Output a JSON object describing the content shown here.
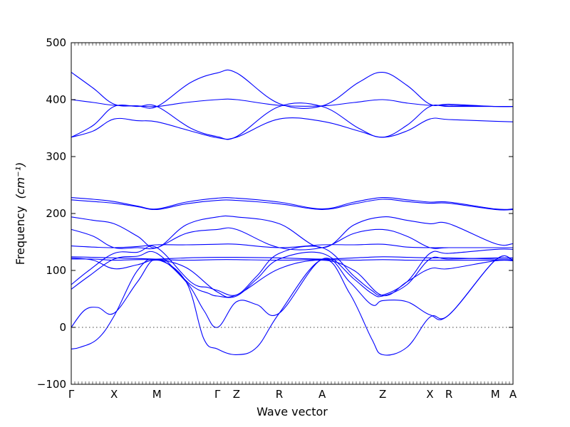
{
  "chart_data": {
    "type": "line",
    "title": "",
    "xlabel": "Wave vector",
    "ylabel": "Frequency",
    "ylabel_unit": "(cm⁻¹)",
    "ylim": [
      -100,
      500
    ],
    "yticks": [
      -100,
      0,
      100,
      200,
      300,
      400,
      500
    ],
    "xlim": [
      0,
      10
    ],
    "xticks": [
      {
        "label": "Γ",
        "x": 0
      },
      {
        "label": "X",
        "x": 0.97
      },
      {
        "label": "M",
        "x": 1.94
      },
      {
        "label": "Γ",
        "x": 3.31
      },
      {
        "label": "Z",
        "x": 3.74
      },
      {
        "label": "R",
        "x": 4.71
      },
      {
        "label": "A",
        "x": 5.68
      },
      {
        "label": "Z",
        "x": 7.05
      },
      {
        "label": "X",
        "x": 8.12
      },
      {
        "label": "R",
        "x": 8.55
      },
      {
        "label": "M",
        "x": 9.6
      },
      {
        "label": "A",
        "x": 10
      }
    ],
    "reference_line": 0,
    "grid": false,
    "line_color": "#0000ff",
    "series": [
      {
        "x": [
          0,
          0.5,
          0.97,
          1.5,
          1.94,
          2.7,
          3.31,
          3.74,
          4.71,
          5.68,
          6.5,
          7.05,
          7.6,
          8.12,
          8.55,
          9.6,
          10
        ],
        "values": [
          448,
          420,
          392,
          389,
          388,
          430,
          447,
          447,
          393,
          389,
          430,
          448,
          425,
          392,
          392,
          388,
          388
        ]
      },
      {
        "x": [
          0,
          0.5,
          0.97,
          1.5,
          1.94,
          2.6,
          3.31,
          3.74,
          4.71,
          5.68,
          6.4,
          7.05,
          7.6,
          8.12,
          8.55,
          9.6,
          10
        ],
        "values": [
          400,
          395,
          390,
          389,
          388,
          395,
          400,
          400,
          390,
          389,
          395,
          400,
          394,
          390,
          390,
          388,
          388
        ]
      },
      {
        "x": [
          0,
          0.5,
          0.97,
          1.5,
          1.94,
          2.7,
          3.31,
          3.74,
          4.71,
          5.68,
          6.5,
          7.05,
          7.6,
          8.12,
          8.55,
          9.6,
          10
        ],
        "values": [
          334,
          355,
          388,
          388,
          388,
          350,
          335,
          335,
          388,
          388,
          350,
          334,
          355,
          388,
          388,
          388,
          388
        ]
      },
      {
        "x": [
          0,
          0.5,
          0.97,
          1.5,
          1.94,
          2.7,
          3.31,
          3.74,
          4.71,
          5.68,
          6.5,
          7.05,
          7.6,
          8.12,
          8.55,
          9.6,
          10
        ],
        "values": [
          334,
          345,
          366,
          363,
          361,
          345,
          333,
          334,
          366,
          362,
          345,
          334,
          345,
          366,
          365,
          362,
          361
        ]
      },
      {
        "x": [
          0,
          0.5,
          0.97,
          1.5,
          1.94,
          2.6,
          3.31,
          3.74,
          4.71,
          5.68,
          6.4,
          7.05,
          7.6,
          8.12,
          8.55,
          9.6,
          10
        ],
        "values": [
          228,
          225,
          221,
          213,
          208,
          220,
          227,
          227,
          220,
          208,
          220,
          228,
          224,
          220,
          220,
          208,
          208
        ]
      },
      {
        "x": [
          0,
          0.5,
          0.97,
          1.5,
          1.94,
          2.6,
          3.31,
          3.74,
          4.71,
          5.68,
          6.4,
          7.05,
          7.6,
          8.12,
          8.55,
          9.6,
          10
        ],
        "values": [
          224,
          221,
          218,
          212,
          207,
          217,
          223,
          223,
          217,
          207,
          217,
          225,
          221,
          218,
          218,
          207,
          207
        ]
      },
      {
        "x": [
          0,
          0.5,
          0.97,
          1.5,
          1.94,
          2.6,
          3.31,
          3.74,
          4.71,
          5.68,
          6.4,
          7.05,
          7.6,
          8.12,
          8.55,
          9.6,
          10
        ],
        "values": [
          194,
          188,
          182,
          160,
          140,
          180,
          194,
          194,
          182,
          140,
          180,
          194,
          188,
          182,
          182,
          147,
          147
        ]
      },
      {
        "x": [
          0,
          0.5,
          0.97,
          1.5,
          1.94,
          2.6,
          3.31,
          3.74,
          4.71,
          5.68,
          6.4,
          7.05,
          7.6,
          8.12,
          8.55,
          9.6,
          10
        ],
        "values": [
          172,
          160,
          140,
          140,
          140,
          165,
          172,
          172,
          140,
          140,
          165,
          172,
          160,
          140,
          140,
          140,
          140
        ]
      },
      {
        "x": [
          0,
          0.5,
          0.97,
          1.5,
          1.94,
          2.6,
          3.31,
          3.74,
          4.71,
          5.68,
          6.4,
          7.05,
          7.6,
          8.12,
          8.55,
          9.6,
          10
        ],
        "values": [
          143,
          141,
          140,
          142,
          145,
          145,
          146,
          146,
          140,
          145,
          145,
          146,
          141,
          140,
          140,
          140,
          140
        ]
      },
      {
        "x": [
          0,
          0.5,
          0.97,
          1.5,
          1.94,
          2.6,
          3.31,
          3.74,
          4.71,
          5.68,
          6.4,
          7.05,
          7.6,
          8.12,
          8.55,
          9.6,
          10
        ],
        "values": [
          124,
          123,
          122,
          121,
          120,
          122,
          123,
          123,
          122,
          120,
          122,
          124,
          123,
          122,
          122,
          120,
          120
        ]
      },
      {
        "x": [
          0,
          0.4,
          0.97,
          1.5,
          1.94,
          2.7,
          3.1,
          3.31,
          3.74,
          4.2,
          4.71,
          5.68,
          6.4,
          6.8,
          7.05,
          7.6,
          8.12,
          8.55,
          9.6,
          10
        ],
        "values": [
          75,
          100,
          130,
          132,
          140,
          80,
          70,
          65,
          57,
          90,
          130,
          140,
          90,
          65,
          57,
          80,
          130,
          130,
          137,
          137
        ]
      },
      {
        "x": [
          0,
          0.4,
          0.97,
          1.5,
          1.94,
          2.7,
          3.1,
          3.31,
          3.74,
          4.2,
          4.71,
          5.68,
          6.4,
          6.8,
          7.05,
          7.6,
          8.12,
          8.55,
          9.6,
          10
        ],
        "values": [
          67,
          90,
          120,
          125,
          130,
          75,
          60,
          55,
          55,
          85,
          120,
          130,
          85,
          60,
          55,
          75,
          120,
          120,
          122,
          122
        ]
      },
      {
        "x": [
          0,
          0.3,
          0.6,
          0.97,
          1.5,
          1.94,
          2.6,
          3.0,
          3.31,
          3.74,
          4.2,
          4.71,
          5.68,
          6.3,
          6.8,
          7.05,
          7.6,
          8.12,
          8.55,
          9.6,
          10
        ],
        "values": [
          0,
          30,
          35,
          25,
          80,
          120,
          80,
          30,
          0,
          45,
          40,
          25,
          120,
          80,
          40,
          47,
          45,
          22,
          22,
          118,
          118
        ]
      },
      {
        "x": [
          0,
          0.2,
          0.6,
          0.97,
          1.5,
          1.94,
          2.6,
          3.0,
          3.31,
          3.74,
          4.2,
          4.71,
          5.68,
          6.3,
          6.8,
          7.05,
          7.6,
          8.12,
          8.55,
          9.6,
          10
        ],
        "values": [
          -38,
          -35,
          -20,
          20,
          100,
          119,
          80,
          -20,
          -38,
          -48,
          -35,
          25,
          119,
          60,
          -20,
          -48,
          -35,
          18,
          22,
          118,
          118
        ]
      },
      {
        "x": [
          0,
          0.5,
          0.97,
          1.5,
          1.94,
          2.6,
          3.31,
          3.74,
          4.71,
          5.68,
          6.4,
          7.05,
          7.6,
          8.12,
          8.55,
          9.6,
          10
        ],
        "values": [
          120,
          120,
          118,
          119,
          119,
          118,
          119,
          119,
          118,
          119,
          118,
          119,
          118,
          118,
          118,
          118,
          118
        ]
      },
      {
        "x": [
          0,
          0.5,
          0.97,
          1.5,
          1.94,
          2.6,
          3.31,
          3.74,
          4.71,
          5.68,
          6.4,
          7.05,
          7.6,
          8.12,
          8.55,
          9.6,
          10
        ],
        "values": [
          122,
          118,
          103,
          110,
          118,
          105,
          62,
          57,
          103,
          118,
          100,
          56,
          80,
          103,
          103,
          117,
          117
        ]
      }
    ]
  }
}
